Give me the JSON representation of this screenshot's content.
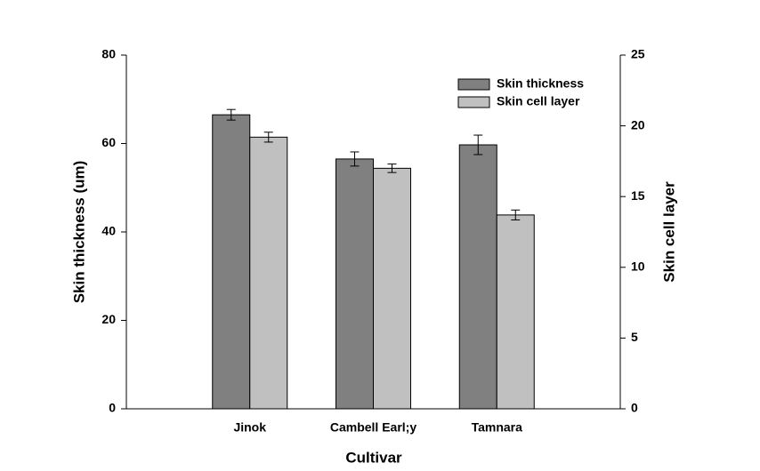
{
  "chart_data": {
    "type": "bar",
    "x_label": "Cultivar",
    "y_label": "Skin thickness (um)",
    "y2_label": "Skin cell layer",
    "categories": [
      "Jinok",
      "Cambell Earl;y",
      "Tamnara"
    ],
    "series": [
      {
        "name": "Skin thickness",
        "color": "#808080",
        "values": [
          66.5,
          56.5,
          59.7
        ],
        "errors": [
          1.2,
          1.6,
          2.2
        ]
      },
      {
        "name": "Skin cell layer",
        "color": "#c0c0c0",
        "axis": "y2",
        "values": [
          19.2,
          17.0,
          13.7
        ],
        "errors": [
          0.35,
          0.3,
          0.35
        ]
      }
    ],
    "ylim": [
      0,
      80
    ],
    "yticks": [
      0,
      20,
      40,
      60,
      80
    ],
    "y2lim": [
      0,
      25
    ],
    "y2ticks": [
      0,
      5,
      10,
      15,
      20,
      25
    ],
    "legend": "upper right"
  }
}
